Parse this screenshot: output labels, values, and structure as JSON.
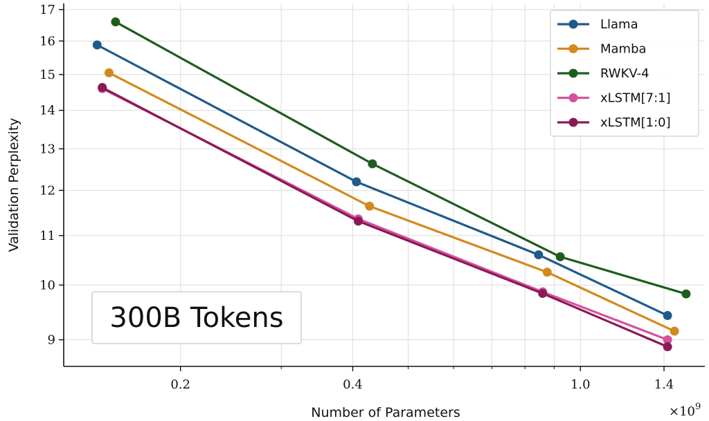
{
  "chart_data": {
    "type": "line",
    "xlabel": "Number of Parameters",
    "ylabel": "Validation Perplexity",
    "x_multiplier_label": "×10",
    "x_multiplier_exp": "9",
    "x_scale": "log",
    "y_scale": "log",
    "xlim": [
      0.125,
      1.65
    ],
    "ylim": [
      8.55,
      17.2
    ],
    "x_ticks": [
      {
        "value": 0.2,
        "label": "0.2"
      },
      {
        "value": 0.4,
        "label": "0.4"
      },
      {
        "value": 1.0,
        "label": "1.0"
      },
      {
        "value": 1.4,
        "label": "1.4"
      }
    ],
    "x_minor_ticks": [
      0.3,
      0.5,
      0.6,
      0.7,
      0.8,
      0.9
    ],
    "y_ticks": [
      {
        "value": 9,
        "label": "9"
      },
      {
        "value": 10,
        "label": "10"
      },
      {
        "value": 11,
        "label": "11"
      },
      {
        "value": 12,
        "label": "12"
      },
      {
        "value": 13,
        "label": "13"
      },
      {
        "value": 14,
        "label": "14"
      },
      {
        "value": 15,
        "label": "15"
      },
      {
        "value": 16,
        "label": "16"
      },
      {
        "value": 17,
        "label": "17"
      }
    ],
    "grid": true,
    "legend_position": "top-right",
    "annotation": "300B Tokens",
    "series": [
      {
        "name": "Llama",
        "color": "#1f5a8a",
        "points": [
          [
            0.143,
            15.88
          ],
          [
            0.406,
            12.2
          ],
          [
            0.845,
            10.6
          ],
          [
            1.42,
            9.43
          ]
        ]
      },
      {
        "name": "Mamba",
        "color": "#d28a1e",
        "points": [
          [
            0.15,
            15.05
          ],
          [
            0.428,
            11.64
          ],
          [
            0.875,
            10.25
          ],
          [
            1.46,
            9.15
          ]
        ]
      },
      {
        "name": "RWKV-4",
        "color": "#1e5c1e",
        "points": [
          [
            0.154,
            16.6
          ],
          [
            0.433,
            12.63
          ],
          [
            0.922,
            10.56
          ],
          [
            1.53,
            9.83
          ]
        ]
      },
      {
        "name": "xLSTM[7:1]",
        "color": "#d4539e",
        "points": [
          [
            0.146,
            14.6
          ],
          [
            0.409,
            11.36
          ],
          [
            0.859,
            9.87
          ],
          [
            1.42,
            9.0
          ]
        ]
      },
      {
        "name": "xLSTM[1:0]",
        "color": "#8a1a55",
        "points": [
          [
            0.146,
            14.63
          ],
          [
            0.409,
            11.31
          ],
          [
            0.859,
            9.84
          ],
          [
            1.42,
            8.88
          ]
        ]
      }
    ]
  }
}
